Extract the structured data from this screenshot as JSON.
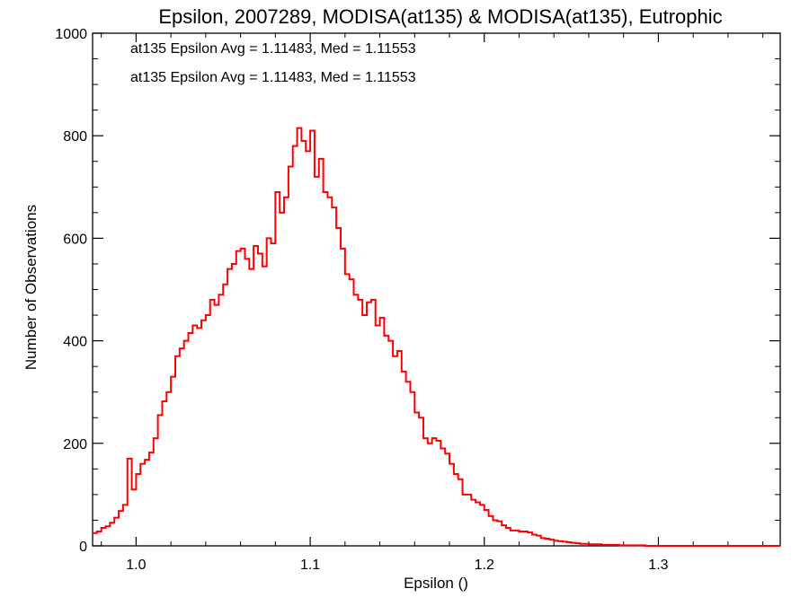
{
  "chart_data": {
    "type": "line",
    "style": "histogram-step",
    "title": "Epsilon, 2007289, MODISA(at135) & MODISA(at135), Eutrophic",
    "xlabel": "Epsilon ()",
    "ylabel": "Number of Observations",
    "xlim": [
      0.975,
      1.37
    ],
    "ylim": [
      0,
      1000
    ],
    "x_ticks": [
      "1.0",
      "1.1",
      "1.2",
      "1.3"
    ],
    "y_ticks": [
      "0",
      "200",
      "400",
      "600",
      "800",
      "1000"
    ],
    "grid": false,
    "legend_position": "top-left",
    "legend": [
      {
        "text": "at135 Epsilon Avg = 1.11483, Med = 1.11553",
        "color": "#000000"
      },
      {
        "text": "at135 Epsilon Avg = 1.11483, Med = 1.11553",
        "color": "#ff0000"
      }
    ],
    "bin_width": 0.0025,
    "series": [
      {
        "color": "#ff0000",
        "x": [
          0.975,
          0.9775,
          0.98,
          0.9825,
          0.985,
          0.9875,
          0.99,
          0.9925,
          0.995,
          0.9975,
          1.0,
          1.0025,
          1.005,
          1.0075,
          1.01,
          1.0125,
          1.015,
          1.0175,
          1.02,
          1.0225,
          1.025,
          1.0275,
          1.03,
          1.0325,
          1.035,
          1.0375,
          1.04,
          1.0425,
          1.045,
          1.0475,
          1.05,
          1.0525,
          1.055,
          1.0575,
          1.06,
          1.0625,
          1.065,
          1.0675,
          1.07,
          1.0725,
          1.075,
          1.0775,
          1.08,
          1.0825,
          1.085,
          1.0875,
          1.09,
          1.0925,
          1.095,
          1.0975,
          1.1,
          1.1025,
          1.105,
          1.1075,
          1.11,
          1.1125,
          1.115,
          1.1175,
          1.12,
          1.1225,
          1.125,
          1.1275,
          1.13,
          1.1325,
          1.135,
          1.1375,
          1.14,
          1.1425,
          1.145,
          1.1475,
          1.15,
          1.1525,
          1.155,
          1.1575,
          1.16,
          1.1625,
          1.165,
          1.1675,
          1.17,
          1.1725,
          1.175,
          1.1775,
          1.18,
          1.1825,
          1.185,
          1.1875,
          1.19,
          1.1925,
          1.195,
          1.1975,
          1.2,
          1.2025,
          1.205,
          1.2075,
          1.21,
          1.2125,
          1.215,
          1.2175,
          1.22,
          1.2225,
          1.225,
          1.2275,
          1.23,
          1.2325,
          1.235,
          1.2375,
          1.24,
          1.2425,
          1.245,
          1.2475,
          1.25,
          1.2525,
          1.255,
          1.2575,
          1.26,
          1.2625,
          1.265,
          1.2675,
          1.27,
          1.2725,
          1.275,
          1.2775,
          1.28,
          1.2825,
          1.285,
          1.2875,
          1.29,
          1.2925,
          1.295,
          1.2975,
          1.3,
          1.3025,
          1.305,
          1.3075,
          1.31,
          1.3125,
          1.315,
          1.3175,
          1.32,
          1.3225,
          1.325,
          1.3275,
          1.33,
          1.3325,
          1.335,
          1.3375,
          1.34,
          1.3425,
          1.345,
          1.3475,
          1.35,
          1.3525,
          1.355,
          1.3575,
          1.36,
          1.3625,
          1.365,
          1.3675
        ],
        "values": [
          25,
          28,
          35,
          38,
          45,
          55,
          68,
          80,
          170,
          110,
          140,
          160,
          168,
          182,
          210,
          255,
          282,
          300,
          330,
          370,
          385,
          400,
          415,
          430,
          425,
          440,
          450,
          480,
          470,
          490,
          510,
          540,
          550,
          575,
          580,
          560,
          540,
          585,
          570,
          545,
          600,
          590,
          690,
          650,
          680,
          740,
          780,
          815,
          790,
          770,
          810,
          720,
          755,
          690,
          680,
          660,
          620,
          580,
          530,
          520,
          490,
          480,
          450,
          475,
          480,
          430,
          445,
          410,
          400,
          370,
          380,
          340,
          320,
          300,
          260,
          250,
          210,
          200,
          210,
          205,
          190,
          180,
          160,
          140,
          130,
          100,
          100,
          90,
          85,
          80,
          70,
          58,
          50,
          48,
          40,
          35,
          30,
          30,
          28,
          28,
          26,
          22,
          20,
          15,
          14,
          12,
          10,
          9,
          8,
          7,
          6,
          5,
          4,
          4,
          3,
          3,
          3,
          2,
          2,
          2,
          2,
          1,
          1,
          1,
          1,
          1,
          1,
          0,
          0,
          0,
          0,
          0,
          0,
          0,
          0,
          0,
          0,
          0,
          0,
          0,
          0,
          0,
          0,
          0,
          0,
          0,
          0,
          0,
          0,
          0,
          0,
          0,
          0,
          0,
          0,
          0,
          0,
          0
        ]
      }
    ]
  }
}
